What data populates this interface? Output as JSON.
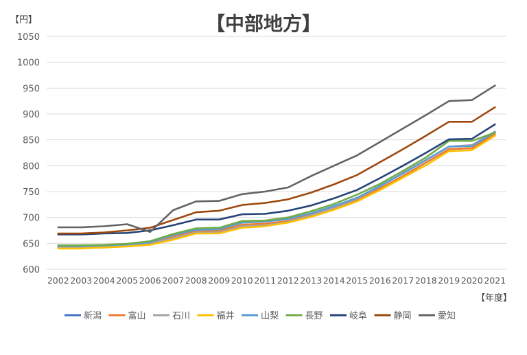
{
  "chart_data": {
    "type": "line",
    "title": "【中部地方】",
    "ylabel": "【円】",
    "xlabel": "【年度】",
    "ylim": [
      600,
      1050
    ],
    "y_ticks": [
      600,
      650,
      700,
      750,
      800,
      850,
      900,
      950,
      1000,
      1050
    ],
    "grid": true,
    "legend_position": "bottom",
    "categories": [
      "2002",
      "2003",
      "2004",
      "2005",
      "2006",
      "2007",
      "2008",
      "2009",
      "2010",
      "2011",
      "2012",
      "2013",
      "2014",
      "2015",
      "2016",
      "2017",
      "2018",
      "2019",
      "2020",
      "2021"
    ],
    "series": [
      {
        "name": "新潟",
        "color": "#4472c4",
        "values": [
          641,
          641,
          642,
          645,
          648,
          662,
          673,
          673,
          685,
          687,
          693,
          705,
          718,
          734,
          756,
          780,
          806,
          832,
          834,
          861
        ]
      },
      {
        "name": "富山",
        "color": "#ed7d31",
        "values": [
          643,
          643,
          644,
          646,
          649,
          663,
          673,
          674,
          686,
          688,
          693,
          705,
          718,
          734,
          756,
          780,
          806,
          832,
          834,
          861
        ]
      },
      {
        "name": "石川",
        "color": "#a5a5a5",
        "values": [
          642,
          642,
          643,
          645,
          649,
          660,
          671,
          671,
          683,
          685,
          691,
          704,
          719,
          736,
          760,
          786,
          811,
          837,
          840,
          866
        ]
      },
      {
        "name": "福井",
        "color": "#ffc000",
        "values": [
          640,
          640,
          642,
          644,
          647,
          657,
          669,
          669,
          680,
          683,
          690,
          701,
          715,
          731,
          753,
          777,
          801,
          828,
          830,
          858
        ]
      },
      {
        "name": "山梨",
        "color": "#5b9bd5",
        "values": [
          645,
          645,
          646,
          648,
          652,
          666,
          676,
          677,
          690,
          692,
          697,
          708,
          722,
          738,
          761,
          785,
          811,
          837,
          838,
          865
        ]
      },
      {
        "name": "長野",
        "color": "#70ad47",
        "values": [
          646,
          646,
          647,
          649,
          654,
          668,
          679,
          680,
          693,
          694,
          700,
          712,
          726,
          744,
          765,
          790,
          816,
          848,
          848,
          864
        ]
      },
      {
        "name": "岐阜",
        "color": "#264478",
        "values": [
          667,
          667,
          669,
          670,
          675,
          685,
          696,
          696,
          706,
          707,
          713,
          723,
          737,
          753,
          776,
          800,
          825,
          851,
          852,
          880
        ]
      },
      {
        "name": "静岡",
        "color": "#9e480e",
        "values": [
          669,
          669,
          671,
          675,
          680,
          695,
          710,
          713,
          724,
          728,
          735,
          748,
          764,
          782,
          807,
          832,
          858,
          885,
          885,
          913
        ]
      },
      {
        "name": "愛知",
        "color": "#636363",
        "values": [
          681,
          681,
          683,
          687,
          672,
          714,
          731,
          732,
          745,
          750,
          758,
          780,
          800,
          820,
          846,
          872,
          898,
          925,
          927,
          955
        ]
      }
    ]
  }
}
